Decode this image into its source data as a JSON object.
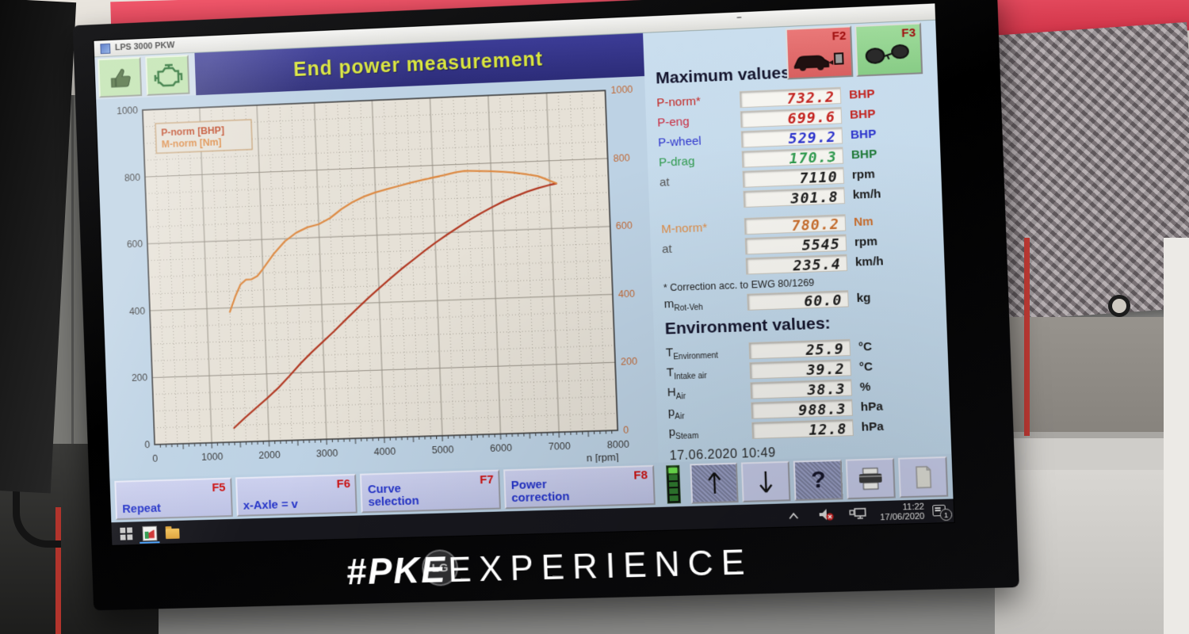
{
  "window": {
    "title": "LPS 3000 PKW",
    "minimize": "–"
  },
  "header": {
    "title": "End power measurement"
  },
  "toolbar": {
    "icons": [
      "thumb-up-icon",
      "engine-icon"
    ]
  },
  "fkeys_top": {
    "f2": "F2",
    "f3": "F3"
  },
  "max_values": {
    "heading": "Maximum values:",
    "rows": [
      {
        "label": "P-norm*",
        "value": "732.2",
        "unit": "BHP"
      },
      {
        "label": "P-eng",
        "value": "699.6",
        "unit": "BHP"
      },
      {
        "label": "P-wheel",
        "value": "529.2",
        "unit": "BHP"
      },
      {
        "label": "P-drag",
        "value": "170.3",
        "unit": "BHP"
      },
      {
        "label": "at",
        "value": "7110",
        "unit": "rpm"
      },
      {
        "label": "",
        "value": "301.8",
        "unit": "km/h"
      }
    ],
    "torque_rows": [
      {
        "label": "M-norm*",
        "value": "780.2",
        "unit": "Nm"
      },
      {
        "label": "at",
        "value": "5545",
        "unit": "rpm"
      },
      {
        "label": "",
        "value": "235.4",
        "unit": "km/h"
      }
    ],
    "correction_note": "* Correction acc. to EWG 80/1269",
    "rot_mass": {
      "base": "m",
      "sub": "Rot-Veh",
      "value": "60.0",
      "unit": "kg"
    }
  },
  "environment": {
    "heading": "Environment values:",
    "rows": [
      {
        "base": "T",
        "sub": "Environment",
        "value": "25.9",
        "unit": "°C"
      },
      {
        "base": "T",
        "sub": "Intake air",
        "value": "39.2",
        "unit": "°C"
      },
      {
        "base": "H",
        "sub": "Air",
        "value": "38.3",
        "unit": "%"
      },
      {
        "base": "p",
        "sub": "Air",
        "value": "988.3",
        "unit": "hPa"
      },
      {
        "base": "p",
        "sub": "Steam",
        "value": "12.8",
        "unit": "hPa"
      }
    ]
  },
  "datetime": "17.06.2020  10:49",
  "fkey_bar": {
    "buttons": [
      {
        "label": "Repeat",
        "fkey": "F5"
      },
      {
        "label": "x-Axle = v",
        "fkey": "F6"
      },
      {
        "label": "Curve selection",
        "fkey": "F7"
      },
      {
        "label": "Power correction",
        "fkey": "F8"
      }
    ],
    "help_label": "?"
  },
  "taskbar": {
    "time": "11:22",
    "date": "17/06/2020",
    "badge": "1",
    "icons": [
      "windows-start-icon",
      "lps3000-app-icon",
      "file-explorer-icon",
      "chevron-up-icon",
      "speaker-muted-icon",
      "network-icon",
      "notification-icon"
    ]
  },
  "bezel": {
    "brand_bold": "#PKE",
    "brand_light": "EXPERIENCE",
    "logo": "LG"
  },
  "colors": {
    "banner_bg": "#32328a",
    "banner_text": "#d9e53e",
    "value_red": "#c32420",
    "value_blue": "#2d35cc",
    "value_green": "#2f9a4e",
    "value_orange": "#dd8b45",
    "f2_bg": "#e06868",
    "f3_bg": "#93d491",
    "button_text_blue": "#2433c8",
    "fkey_red": "#cc1111",
    "curve_power": "#b23b25",
    "curve_torque": "#dd8b45"
  },
  "chart_data": {
    "type": "line",
    "xlabel": "n [rpm]",
    "xlim": [
      0,
      8000
    ],
    "ylim_left": [
      0,
      1000
    ],
    "ylim_right": [
      0,
      1000
    ],
    "x_ticks": [
      0,
      1000,
      2000,
      3000,
      4000,
      5000,
      6000,
      7000,
      8000
    ],
    "y_ticks_left": [
      0,
      200,
      400,
      600,
      800,
      1000
    ],
    "y_ticks_right": [
      0,
      200,
      400,
      600,
      800,
      1000
    ],
    "grid": "dotted minor + solid major",
    "legend_position": "top-left",
    "series": [
      {
        "name": "P-norm [BHP]",
        "color": "#b23b25",
        "axis": "left",
        "points": [
          [
            1400,
            42
          ],
          [
            1600,
            72
          ],
          [
            1800,
            100
          ],
          [
            2000,
            128
          ],
          [
            2200,
            158
          ],
          [
            2400,
            192
          ],
          [
            2600,
            228
          ],
          [
            2800,
            260
          ],
          [
            3000,
            290
          ],
          [
            3200,
            320
          ],
          [
            3400,
            352
          ],
          [
            3600,
            383
          ],
          [
            3800,
            413
          ],
          [
            4000,
            442
          ],
          [
            4200,
            470
          ],
          [
            4400,
            497
          ],
          [
            4600,
            522
          ],
          [
            4800,
            547
          ],
          [
            5000,
            571
          ],
          [
            5200,
            593
          ],
          [
            5400,
            614
          ],
          [
            5600,
            634
          ],
          [
            5800,
            653
          ],
          [
            6000,
            670
          ],
          [
            6200,
            686
          ],
          [
            6400,
            699
          ],
          [
            6600,
            711
          ],
          [
            6800,
            721
          ],
          [
            7000,
            729
          ],
          [
            7110,
            732
          ]
        ]
      },
      {
        "name": "M-norm [Nm]",
        "color": "#dd8b45",
        "axis": "right",
        "points": [
          [
            1400,
            388
          ],
          [
            1500,
            432
          ],
          [
            1600,
            468
          ],
          [
            1700,
            482
          ],
          [
            1800,
            483
          ],
          [
            1900,
            492
          ],
          [
            2000,
            512
          ],
          [
            2200,
            556
          ],
          [
            2400,
            592
          ],
          [
            2600,
            616
          ],
          [
            2800,
            631
          ],
          [
            3000,
            639
          ],
          [
            3200,
            656
          ],
          [
            3400,
            681
          ],
          [
            3600,
            701
          ],
          [
            3800,
            716
          ],
          [
            4000,
            727
          ],
          [
            4200,
            735
          ],
          [
            4400,
            743
          ],
          [
            4600,
            751
          ],
          [
            4800,
            758
          ],
          [
            5000,
            764
          ],
          [
            5200,
            770
          ],
          [
            5400,
            777
          ],
          [
            5545,
            780
          ],
          [
            5700,
            779
          ],
          [
            6000,
            776
          ],
          [
            6200,
            773
          ],
          [
            6400,
            769
          ],
          [
            6600,
            763
          ],
          [
            6800,
            756
          ],
          [
            6900,
            749
          ],
          [
            7000,
            741
          ],
          [
            7110,
            733
          ]
        ]
      }
    ],
    "annotations": {
      "power_peak": "732.2 BHP @ 7110 rpm",
      "torque_peak": "780.2 Nm @ 5545 rpm"
    }
  }
}
